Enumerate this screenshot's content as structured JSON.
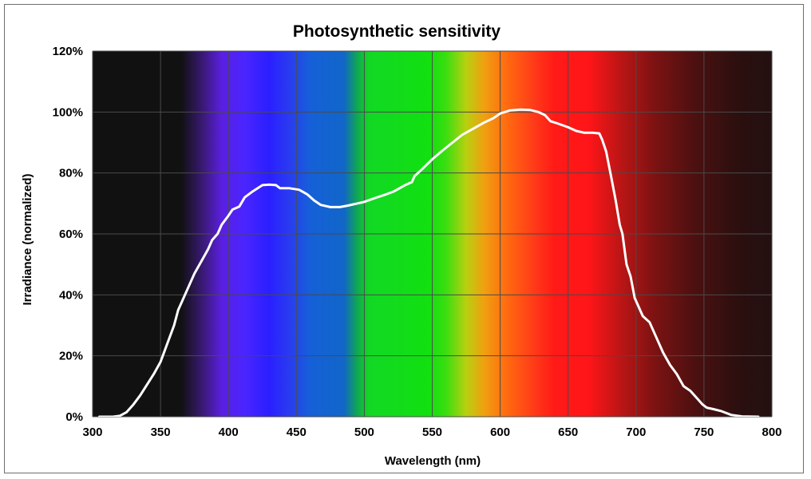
{
  "chart_data": {
    "type": "line",
    "title": "Photosynthetic sensitivity",
    "xlabel": "Wavelength (nm)",
    "ylabel": "Irradiance (normalized)",
    "xlim": [
      300,
      800
    ],
    "ylim": [
      0,
      120
    ],
    "x_ticks": [
      "300",
      "350",
      "400",
      "450",
      "500",
      "550",
      "600",
      "650",
      "700",
      "750",
      "800"
    ],
    "y_ticks": [
      "0%",
      "20%",
      "40%",
      "60%",
      "80%",
      "100%",
      "120%"
    ],
    "grid": true,
    "background": "visible spectrum gradient",
    "series": [
      {
        "name": "Photosynthetic sensitivity",
        "color": "#ffffff",
        "points": [
          [
            305,
            0
          ],
          [
            315,
            0
          ],
          [
            320,
            0.3
          ],
          [
            325,
            1.5
          ],
          [
            330,
            4
          ],
          [
            335,
            7
          ],
          [
            340,
            10.5
          ],
          [
            345,
            14
          ],
          [
            350,
            18
          ],
          [
            355,
            24
          ],
          [
            360,
            30
          ],
          [
            363,
            35
          ],
          [
            366,
            38
          ],
          [
            370,
            42
          ],
          [
            375,
            47
          ],
          [
            380,
            51
          ],
          [
            385,
            55
          ],
          [
            388,
            58
          ],
          [
            392,
            60
          ],
          [
            395,
            63
          ],
          [
            400,
            66
          ],
          [
            403,
            68
          ],
          [
            408,
            69
          ],
          [
            412,
            72
          ],
          [
            418,
            74
          ],
          [
            425,
            76
          ],
          [
            430,
            76.2
          ],
          [
            435,
            76
          ],
          [
            438,
            75
          ],
          [
            445,
            75
          ],
          [
            452,
            74.5
          ],
          [
            458,
            73
          ],
          [
            463,
            71
          ],
          [
            468,
            69.5
          ],
          [
            475,
            68.8
          ],
          [
            482,
            68.8
          ],
          [
            488,
            69.3
          ],
          [
            495,
            70
          ],
          [
            500,
            70.5
          ],
          [
            508,
            71.8
          ],
          [
            515,
            72.8
          ],
          [
            522,
            74
          ],
          [
            530,
            76
          ],
          [
            535,
            77
          ],
          [
            537,
            79
          ],
          [
            542,
            81
          ],
          [
            550,
            84.5
          ],
          [
            558,
            87.5
          ],
          [
            565,
            90
          ],
          [
            572,
            92.5
          ],
          [
            580,
            94.5
          ],
          [
            588,
            96.5
          ],
          [
            595,
            98
          ],
          [
            600,
            99.5
          ],
          [
            607,
            100.5
          ],
          [
            615,
            100.8
          ],
          [
            622,
            100.7
          ],
          [
            628,
            100
          ],
          [
            633,
            99
          ],
          [
            637,
            97
          ],
          [
            642,
            96.3
          ],
          [
            650,
            95
          ],
          [
            656,
            93.8
          ],
          [
            662,
            93.2
          ],
          [
            668,
            93.2
          ],
          [
            673,
            93
          ],
          [
            675,
            91
          ],
          [
            678,
            87
          ],
          [
            682,
            78
          ],
          [
            685,
            71
          ],
          [
            688,
            63
          ],
          [
            690,
            60
          ],
          [
            693,
            50
          ],
          [
            696,
            46
          ],
          [
            699,
            39
          ],
          [
            702,
            36
          ],
          [
            705,
            33
          ],
          [
            710,
            31
          ],
          [
            715,
            26
          ],
          [
            720,
            21
          ],
          [
            725,
            17
          ],
          [
            730,
            14
          ],
          [
            735,
            10
          ],
          [
            740,
            8.5
          ],
          [
            745,
            6
          ],
          [
            749,
            4
          ],
          [
            752,
            3
          ],
          [
            757,
            2.5
          ],
          [
            763,
            1.8
          ],
          [
            770,
            0.6
          ],
          [
            778,
            0.1
          ],
          [
            790,
            0
          ]
        ]
      }
    ]
  }
}
